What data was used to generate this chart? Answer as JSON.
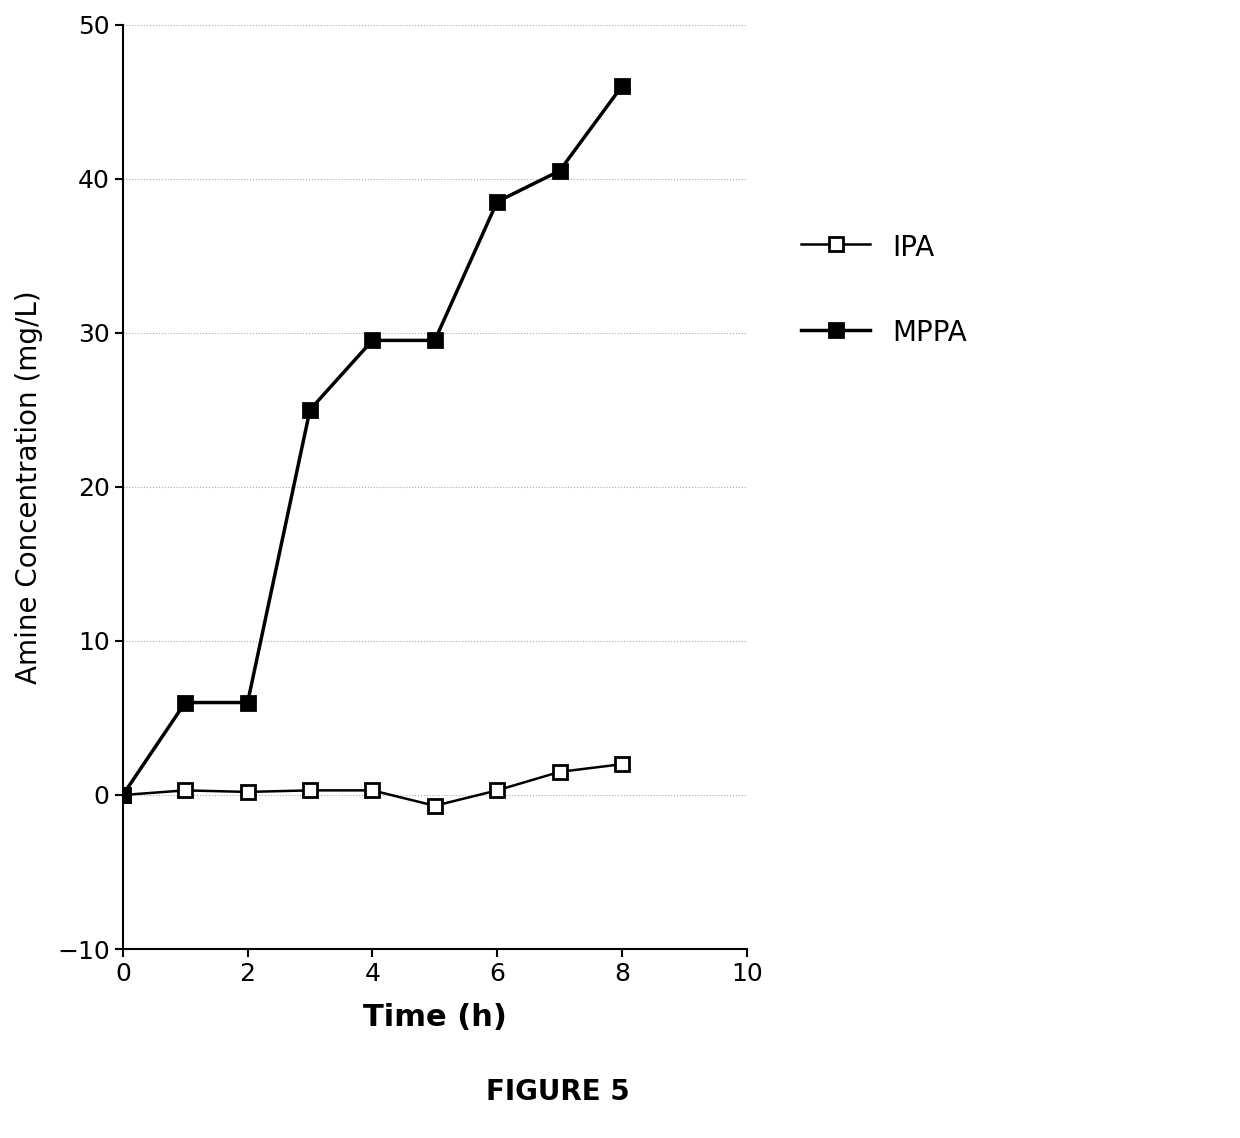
{
  "IPA_x": [
    0,
    1,
    2,
    3,
    4,
    5,
    6,
    7,
    8
  ],
  "IPA_y": [
    0,
    0.3,
    0.2,
    0.3,
    0.3,
    -0.7,
    0.3,
    1.5,
    2.0
  ],
  "MPPA_x": [
    0,
    1,
    2,
    3,
    4,
    5,
    6,
    7,
    8
  ],
  "MPPA_y": [
    0,
    6.0,
    6.0,
    25.0,
    29.5,
    29.5,
    38.5,
    40.5,
    46.0
  ],
  "xlabel": "Time (h)",
  "ylabel": "Amine Concentration (mg/L)",
  "xlim": [
    0,
    10
  ],
  "ylim": [
    -10,
    50
  ],
  "xticks": [
    0,
    2,
    4,
    6,
    8,
    10
  ],
  "yticks": [
    -10,
    0,
    10,
    20,
    30,
    40,
    50
  ],
  "line_color": "#000000",
  "grid_color": "#aaaaaa",
  "figure_caption": "FIGURE 5",
  "legend_IPA": "IPA",
  "legend_MPPA": "MPPA"
}
